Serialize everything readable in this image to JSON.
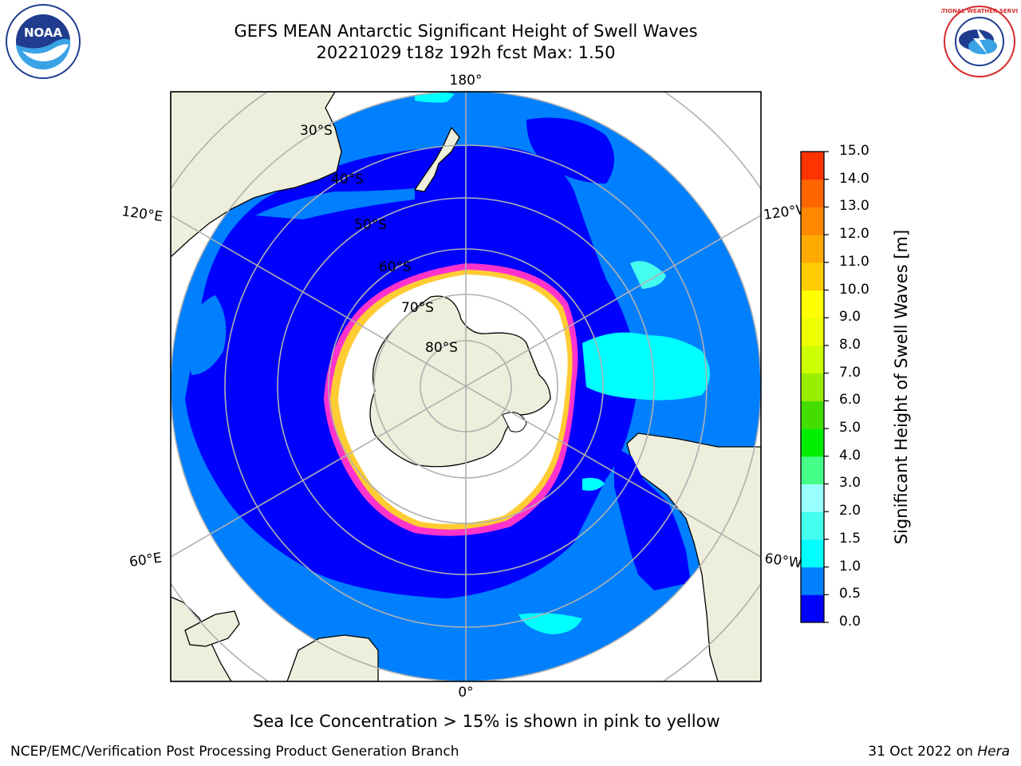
{
  "title": {
    "line1": "GEFS MEAN Antarctic Significant Height of Swell Waves",
    "line2": "20221029 t18z 192h fcst   Max: 1.50"
  },
  "logos": {
    "left": {
      "name": "noaa-logo-icon",
      "text": "NOAA"
    },
    "right": {
      "name": "national-weather-service-logo-icon",
      "text": "NATIONAL WEATHER SERVICE"
    }
  },
  "map": {
    "projection": "south-polar-stereographic",
    "longitude_labels": {
      "top": "180°",
      "bottom": "0°",
      "upper_left": "120°E",
      "upper_right": "120°W",
      "lower_left": "60°E",
      "lower_right": "60°W"
    },
    "latitude_labels": [
      "30°S",
      "40°S",
      "50°S",
      "60°S",
      "70°S",
      "80°S"
    ],
    "colors": {
      "land": "#eeeedc",
      "ocean_low": "#0000ff",
      "ocean_mid": "#0080ff",
      "swell_high": "#00ffff",
      "ice": "#ffffff",
      "ice_edge": [
        "#ff33cc",
        "#ffcc33",
        "#ffa500"
      ],
      "grid": "#b0b0b0"
    }
  },
  "colorbar": {
    "label": "Significant Height of Swell Waves [m]",
    "ticks": [
      "0.0",
      "0.5",
      "1.0",
      "1.5",
      "2.0",
      "3.0",
      "4.0",
      "5.0",
      "6.0",
      "7.0",
      "8.0",
      "9.0",
      "10.0",
      "11.0",
      "12.0",
      "13.0",
      "14.0",
      "15.0"
    ],
    "colors": [
      "#0000ff",
      "#0080ff",
      "#00ffff",
      "#44ffee",
      "#99ffff",
      "#44ff88",
      "#00ee00",
      "#44dd00",
      "#99ee00",
      "#ccff00",
      "#eeff00",
      "#ffff00",
      "#ffcc00",
      "#ffaa00",
      "#ff8800",
      "#ff6600",
      "#ff3300",
      "#ff0000"
    ]
  },
  "note": "Sea Ice Concentration > 15% is shown in pink to yellow",
  "footer": {
    "left": "NCEP/EMC/Verification Post Processing Product Generation Branch",
    "right_prefix": "31 Oct 2022 on",
    "right_italic": "Hera"
  }
}
